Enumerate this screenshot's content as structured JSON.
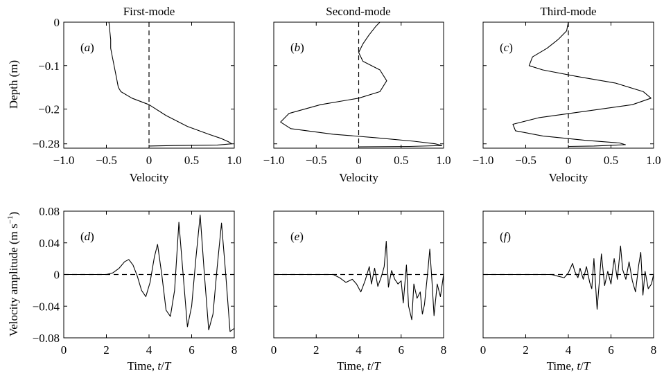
{
  "chart_data": [
    {
      "type": "line",
      "panel": "(a)",
      "title": "First-mode",
      "xlabel": "Velocity",
      "ylabel": "Depth (m)",
      "xlim": [
        -1.0,
        1.0
      ],
      "ylim": [
        -0.29,
        0.0
      ],
      "y_inverted_display": false,
      "xticks": [
        "−1.0",
        "−0.5",
        "0",
        "0.5",
        "1.0"
      ],
      "xtick_values": [
        -1.0,
        -0.5,
        0,
        0.5,
        1.0
      ],
      "yticks": [
        "0",
        "−0.1",
        "−0.2",
        "−0.28"
      ],
      "ytick_values": [
        0,
        -0.1,
        -0.2,
        -0.28
      ],
      "reference_line": {
        "axis": "x",
        "value": 0,
        "style": "dashed"
      },
      "series": [
        {
          "x": [
            -0.47,
            -0.46,
            -0.45,
            -0.45,
            -0.43,
            -0.41,
            -0.38,
            -0.36,
            -0.33,
            -0.2,
            0.0,
            0.2,
            0.45,
            0.7,
            0.85,
            0.93,
            0.97,
            0.8,
            0.3,
            0.0
          ],
          "y": [
            0.0,
            -0.02,
            -0.04,
            -0.06,
            -0.08,
            -0.1,
            -0.13,
            -0.15,
            -0.16,
            -0.175,
            -0.19,
            -0.215,
            -0.24,
            -0.258,
            -0.268,
            -0.275,
            -0.28,
            -0.283,
            -0.284,
            -0.285
          ]
        }
      ]
    },
    {
      "type": "line",
      "panel": "(b)",
      "title": "Second-mode",
      "xlabel": "Velocity",
      "ylabel": "",
      "xlim": [
        -1.0,
        1.0
      ],
      "ylim": [
        -0.29,
        0.0
      ],
      "xticks": [
        "−1.0",
        "−0.5",
        "0",
        "0.5",
        "1.0"
      ],
      "xtick_values": [
        -1.0,
        -0.5,
        0,
        0.5,
        1.0
      ],
      "reference_line": {
        "axis": "x",
        "value": 0,
        "style": "dashed"
      },
      "series": [
        {
          "x": [
            0.25,
            0.2,
            0.12,
            0.05,
            0.0,
            0.05,
            0.25,
            0.33,
            0.25,
            0.0,
            -0.45,
            -0.82,
            -0.92,
            -0.8,
            -0.3,
            0.2,
            0.65,
            0.9,
            0.98,
            0.6,
            0.0
          ],
          "y": [
            0.0,
            -0.01,
            -0.03,
            -0.05,
            -0.07,
            -0.09,
            -0.11,
            -0.135,
            -0.16,
            -0.175,
            -0.19,
            -0.21,
            -0.23,
            -0.245,
            -0.258,
            -0.266,
            -0.274,
            -0.28,
            -0.284,
            -0.286,
            -0.287
          ]
        }
      ]
    },
    {
      "type": "line",
      "panel": "(c)",
      "title": "Third-mode",
      "xlabel": "Velocity",
      "ylabel": "",
      "xlim": [
        -1.0,
        1.0
      ],
      "ylim": [
        -0.29,
        0.0
      ],
      "xticks": [
        "−1.0",
        "−0.5",
        "0",
        "0.5",
        "1.0"
      ],
      "xtick_values": [
        -1.0,
        -0.5,
        0,
        0.5,
        1.0
      ],
      "reference_line": {
        "axis": "x",
        "value": 0,
        "style": "dashed"
      },
      "series": [
        {
          "x": [
            0.0,
            -0.02,
            -0.12,
            -0.25,
            -0.42,
            -0.46,
            -0.3,
            0.1,
            0.55,
            0.88,
            0.97,
            0.75,
            0.2,
            -0.35,
            -0.65,
            -0.62,
            -0.3,
            0.2,
            0.6,
            0.67,
            0.3,
            0.0
          ],
          "y": [
            0.0,
            -0.02,
            -0.04,
            -0.06,
            -0.08,
            -0.1,
            -0.11,
            -0.125,
            -0.14,
            -0.16,
            -0.175,
            -0.19,
            -0.205,
            -0.22,
            -0.235,
            -0.25,
            -0.262,
            -0.272,
            -0.278,
            -0.282,
            -0.285,
            -0.286
          ]
        }
      ]
    },
    {
      "type": "line",
      "panel": "(d)",
      "title": "",
      "xlabel": "Time, t/T",
      "ylabel": "Velocity amplitude (m s⁻¹)",
      "xlim": [
        0,
        8
      ],
      "ylim": [
        -0.08,
        0.08
      ],
      "xticks": [
        "0",
        "2",
        "4",
        "6",
        "8"
      ],
      "xtick_values": [
        0,
        2,
        4,
        6,
        8
      ],
      "yticks": [
        "0.08",
        "0.04",
        "0",
        "−0.04",
        "−0.08"
      ],
      "ytick_values": [
        0.08,
        0.04,
        0,
        -0.04,
        -0.08
      ],
      "reference_line": {
        "axis": "y",
        "value": 0,
        "style": "dashed"
      },
      "series": [
        {
          "x": [
            0,
            2.0,
            2.3,
            2.6,
            2.85,
            3.05,
            3.25,
            3.45,
            3.65,
            3.85,
            4.05,
            4.25,
            4.4,
            4.6,
            4.8,
            5.0,
            5.2,
            5.4,
            5.6,
            5.8,
            6.0,
            6.2,
            6.4,
            6.6,
            6.8,
            7.0,
            7.2,
            7.4,
            7.6,
            7.8,
            8.0
          ],
          "y": [
            0,
            0,
            0.002,
            0.008,
            0.016,
            0.019,
            0.012,
            -0.002,
            -0.02,
            -0.028,
            -0.01,
            0.022,
            0.038,
            0.0,
            -0.045,
            -0.053,
            -0.02,
            0.066,
            0.0,
            -0.066,
            -0.04,
            0.02,
            0.075,
            0.0,
            -0.07,
            -0.05,
            0.01,
            0.065,
            0.0,
            -0.072,
            -0.068
          ]
        }
      ]
    },
    {
      "type": "line",
      "panel": "(e)",
      "title": "",
      "xlabel": "Time, t/T",
      "ylabel": "",
      "xlim": [
        0,
        8
      ],
      "ylim": [
        -0.08,
        0.08
      ],
      "xticks": [
        "0",
        "2",
        "4",
        "6",
        "8"
      ],
      "xtick_values": [
        0,
        2,
        4,
        6,
        8
      ],
      "reference_line": {
        "axis": "y",
        "value": 0,
        "style": "dashed"
      },
      "series": [
        {
          "x": [
            0,
            2.8,
            3.1,
            3.4,
            3.7,
            3.9,
            4.1,
            4.3,
            4.5,
            4.6,
            4.75,
            4.9,
            5.05,
            5.2,
            5.3,
            5.4,
            5.55,
            5.7,
            5.85,
            6.0,
            6.1,
            6.25,
            6.35,
            6.5,
            6.6,
            6.75,
            6.9,
            7.0,
            7.1,
            7.25,
            7.35,
            7.45,
            7.55,
            7.7,
            7.85,
            8.0
          ],
          "y": [
            0,
            0,
            -0.004,
            -0.01,
            -0.006,
            -0.012,
            -0.022,
            -0.008,
            0.01,
            -0.012,
            0.008,
            -0.015,
            -0.004,
            0.01,
            0.042,
            -0.016,
            0.005,
            -0.006,
            -0.012,
            -0.008,
            -0.036,
            0.012,
            -0.04,
            -0.057,
            -0.012,
            -0.03,
            -0.022,
            -0.05,
            -0.038,
            0.002,
            0.032,
            -0.008,
            -0.052,
            -0.012,
            -0.028,
            0.0
          ]
        }
      ]
    },
    {
      "type": "line",
      "panel": "(f)",
      "title": "",
      "xlabel": "Time, t/T",
      "ylabel": "",
      "xlim": [
        0,
        8
      ],
      "ylim": [
        -0.08,
        0.08
      ],
      "xticks": [
        "0",
        "2",
        "4",
        "6",
        "8"
      ],
      "xtick_values": [
        0,
        2,
        4,
        6,
        8
      ],
      "reference_line": {
        "axis": "y",
        "value": 0,
        "style": "dashed"
      },
      "series": [
        {
          "x": [
            0,
            3.2,
            3.5,
            3.8,
            4.0,
            4.2,
            4.3,
            4.45,
            4.55,
            4.7,
            4.85,
            5.0,
            5.1,
            5.2,
            5.35,
            5.45,
            5.55,
            5.7,
            5.85,
            6.0,
            6.15,
            6.3,
            6.45,
            6.55,
            6.7,
            6.85,
            7.0,
            7.15,
            7.3,
            7.4,
            7.5,
            7.6,
            7.75,
            7.9,
            8.0
          ],
          "y": [
            0,
            0,
            -0.002,
            -0.004,
            0.002,
            0.014,
            0.004,
            -0.004,
            0.008,
            -0.006,
            0.01,
            -0.01,
            -0.018,
            0.02,
            -0.044,
            -0.01,
            0.026,
            -0.014,
            0.004,
            -0.012,
            0.02,
            -0.006,
            0.036,
            0.006,
            -0.006,
            0.016,
            -0.008,
            -0.022,
            0.012,
            0.028,
            -0.026,
            0.004,
            -0.018,
            -0.012,
            0.0
          ]
        }
      ]
    }
  ],
  "panel_labels": {
    "a": {
      "open": "(",
      "letter": "a",
      "close": ")"
    },
    "b": {
      "open": "(",
      "letter": "b",
      "close": ")"
    },
    "c": {
      "open": "(",
      "letter": "c",
      "close": ")"
    },
    "d": {
      "open": "(",
      "letter": "d",
      "close": ")"
    },
    "e": {
      "open": "(",
      "letter": "e",
      "close": ")"
    },
    "f": {
      "open": "(",
      "letter": "f",
      "close": ")"
    }
  },
  "labels": {
    "velocity": "Velocity",
    "time_prefix": "Time, ",
    "time_t": "t",
    "time_slash": "/",
    "time_T": "T",
    "depth": "Depth (m)",
    "amp_main": "Velocity amplitude (m s",
    "amp_sup": "−1",
    "amp_close": ")"
  }
}
